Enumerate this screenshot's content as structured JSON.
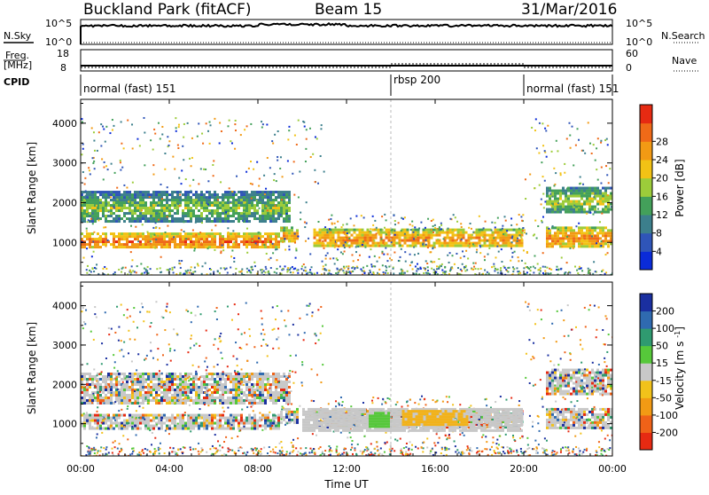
{
  "header": {
    "station": "Buckland Park (fitACF)",
    "beam": "Beam 15",
    "date": "31/Mar/2016"
  },
  "noise_panel": {
    "left_label": "N.Sky",
    "right_label": "N.Search",
    "tick_top": "10^5",
    "tick_bottom": "10^0"
  },
  "freq_panel": {
    "left_label_line1": "Freq.",
    "left_label_line2": "[MHz]",
    "left_tick_top": "18",
    "left_tick_bottom": "8",
    "right_label": "Nave",
    "right_tick_top": "60",
    "right_tick_bottom": "0"
  },
  "cpid": {
    "label": "CPID",
    "segments": [
      {
        "name": "normal (fast) 151",
        "start_h": 0,
        "end_h": 14
      },
      {
        "name": "rbsp 200",
        "start_h": 14,
        "end_h": 20
      },
      {
        "name": "normal (fast) 151",
        "start_h": 20,
        "end_h": 24
      }
    ]
  },
  "x_axis": {
    "label": "Time UT",
    "ticks": [
      "00:00",
      "04:00",
      "08:00",
      "12:00",
      "16:00",
      "20:00",
      "00:00"
    ]
  },
  "power_panel": {
    "ylabel": "Slant Range [km]",
    "yticks": [
      "1000",
      "2000",
      "3000",
      "4000"
    ],
    "colorbar_label": "Power [dB]",
    "colorbar_ticks": [
      "4",
      "8",
      "12",
      "16",
      "20",
      "24",
      "28"
    ],
    "colorbar_colors": [
      "#0a2bd8",
      "#2f55b8",
      "#3c7f8c",
      "#43a05a",
      "#9ccc3a",
      "#f2c215",
      "#f29a14",
      "#ef6a18",
      "#e62a12"
    ]
  },
  "velocity_panel": {
    "ylabel": "Slant Range [km]",
    "yticks": [
      "1000",
      "2000",
      "3000",
      "4000"
    ],
    "colorbar_label": "Velocity [m s^-1]",
    "colorbar_ticks": [
      "200",
      "100",
      "50",
      "15",
      "-15",
      "-50",
      "-100",
      "-200"
    ],
    "colorbar_colors": [
      "#1a2fa0",
      "#2f6ab0",
      "#2f9a70",
      "#56c83a",
      "#c8c8c8",
      "#f2c21a",
      "#f29a14",
      "#ef6218",
      "#e62a12"
    ]
  },
  "chart_data": {
    "type": "heatmap",
    "title": "Buckland Park (fitACF)",
    "xlabel": "Time UT",
    "ylabel": "Slant Range [km]",
    "xlim": [
      0,
      24
    ],
    "ylim": [
      180,
      4600
    ],
    "power_features": [
      {
        "name": "near-range band",
        "t0": 0,
        "t1": 9,
        "r0": 850,
        "r1": 1250,
        "power_db": 28
      },
      {
        "name": "near-range band",
        "t0": 9,
        "t1": 9.8,
        "r0": 1000,
        "r1": 1400,
        "power_db": 24
      },
      {
        "name": "1/2-hop band",
        "t0": 10.5,
        "t1": 20,
        "r0": 900,
        "r1": 1350,
        "power_db": 26
      },
      {
        "name": "far band",
        "t0": 0,
        "t1": 9.5,
        "r0": 1500,
        "r1": 2300,
        "power_db": 16
      },
      {
        "name": "late band",
        "t0": 21,
        "t1": 24,
        "r0": 850,
        "r1": 1400,
        "power_db": 26
      },
      {
        "name": "late far band",
        "t0": 21,
        "t1": 24,
        "r0": 1700,
        "r1": 2400,
        "power_db": 18
      }
    ],
    "velocity_features": [
      {
        "name": "ground scatter",
        "t0": 10,
        "t1": 20,
        "r0": 800,
        "r1": 1400,
        "velocity": 0
      },
      {
        "name": "ionospheric scatter",
        "t0": 13,
        "t1": 14,
        "r0": 900,
        "r1": 1300,
        "velocity": 60
      },
      {
        "name": "ionospheric scatter",
        "t0": 14.5,
        "t1": 17.5,
        "r0": 950,
        "r1": 1350,
        "velocity": -60
      }
    ]
  }
}
